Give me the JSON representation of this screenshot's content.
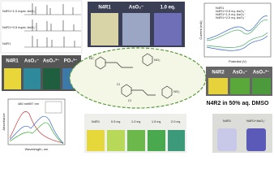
{
  "nmr": {
    "labels": [
      "N4R1+1.0 equiv. AsO₃⁻",
      "N4R1+0.5 equiv. AsO₃⁻",
      "N4R1"
    ]
  },
  "photo_top": {
    "labels": [
      "N4R1",
      "AsO₃⁻",
      "1.0 eq."
    ]
  },
  "cv": {
    "legend": [
      "N4R1",
      "N4R1+0.5 eq. AsO₃⁻",
      "N4R1+1.0 eq. AsO₃⁻",
      "N4R1+2.0 eq. AsO₃⁻"
    ],
    "y_label": "Current (mA)",
    "x_label": "Potential (V)"
  },
  "photo_n4r1": {
    "labels": [
      "N4R1",
      "AsO₃⁻",
      "AsO₄³⁻",
      "PO₄³⁻"
    ]
  },
  "structure": {
    "labels": [
      "NC",
      "NO₂",
      "Cl",
      "Cl",
      "NO₂"
    ]
  },
  "photo_n4r2": {
    "labels": [
      "N4R2",
      "AsO₃⁻",
      "AsO₄³⁻"
    ],
    "caption": "N4R2 in 50% aq. DMSO"
  },
  "spectrum": {
    "y_label": "Absorbance",
    "x_label": "Wavelength, nm",
    "peaks": [
      "480 nm",
      "597 nm"
    ]
  },
  "photo_titration": {
    "labels": [
      "N4R1",
      "0.5 eq.",
      "1.0 eq.",
      "1.5 eq.",
      "2.0 eq."
    ]
  },
  "photo_solid": {
    "labels": [
      "N4R1",
      "N4R1+AsO₃⁻"
    ]
  }
}
